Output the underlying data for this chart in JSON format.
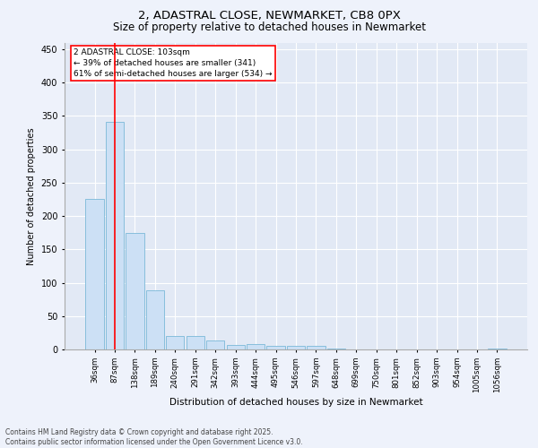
{
  "title1": "2, ADASTRAL CLOSE, NEWMARKET, CB8 0PX",
  "title2": "Size of property relative to detached houses in Newmarket",
  "xlabel": "Distribution of detached houses by size in Newmarket",
  "ylabel": "Number of detached properties",
  "categories": [
    "36sqm",
    "87sqm",
    "138sqm",
    "189sqm",
    "240sqm",
    "291sqm",
    "342sqm",
    "393sqm",
    "444sqm",
    "495sqm",
    "546sqm",
    "597sqm",
    "648sqm",
    "699sqm",
    "750sqm",
    "801sqm",
    "852sqm",
    "903sqm",
    "954sqm",
    "1005sqm",
    "1056sqm"
  ],
  "values": [
    225,
    341,
    174,
    88,
    20,
    20,
    14,
    7,
    8,
    5,
    5,
    5,
    1,
    0,
    0,
    0,
    0,
    0,
    0,
    0,
    1
  ],
  "bar_color": "#cce0f5",
  "bar_edge_color": "#7ab8d8",
  "vline_x": 1,
  "vline_color": "red",
  "annotation_title": "2 ADASTRAL CLOSE: 103sqm",
  "annotation_line1": "← 39% of detached houses are smaller (341)",
  "annotation_line2": "61% of semi-detached houses are larger (534) →",
  "ylim": [
    0,
    460
  ],
  "yticks": [
    0,
    50,
    100,
    150,
    200,
    250,
    300,
    350,
    400,
    450
  ],
  "footer1": "Contains HM Land Registry data © Crown copyright and database right 2025.",
  "footer2": "Contains public sector information licensed under the Open Government Licence v3.0.",
  "bg_color": "#eef2fb",
  "plot_bg_color": "#e2e9f5"
}
